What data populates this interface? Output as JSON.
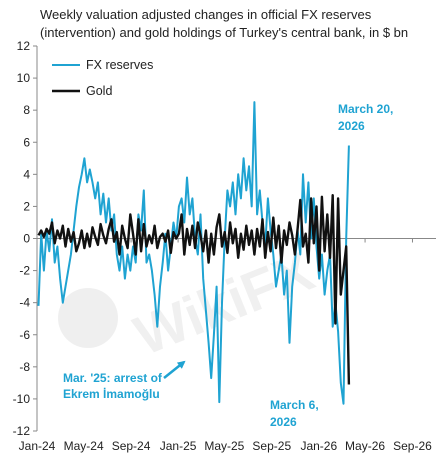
{
  "chart_data": {
    "type": "line",
    "title": "Weekly valuation adjusted changes in official FX reserves (intervention) and gold holdings of Turkey's central bank, in $ bn",
    "title_lines": [
      "Weekly valuation adjusted changes in official FX reserves",
      "(intervention) and gold holdings of Turkey's central bank, in $ bn"
    ],
    "xlabel": "",
    "ylabel": "",
    "ylim": [
      -12,
      12
    ],
    "y_ticks": [
      -12,
      -10,
      -8,
      -6,
      -4,
      -2,
      0,
      2,
      4,
      6,
      8,
      10,
      12
    ],
    "xlim": [
      "2024-01-01",
      "2026-11-01"
    ],
    "x_tick_labels": [
      {
        "date": "2024-01-01",
        "label": "Jan-24"
      },
      {
        "date": "2024-05-01",
        "label": "May-24"
      },
      {
        "date": "2024-09-01",
        "label": "Sep-24"
      },
      {
        "date": "2025-01-01",
        "label": "Jan-25"
      },
      {
        "date": "2025-05-01",
        "label": "May-25"
      },
      {
        "date": "2025-09-01",
        "label": "Sep-25"
      },
      {
        "date": "2026-01-01",
        "label": "Jan-26"
      },
      {
        "date": "2026-05-01",
        "label": "May-26"
      },
      {
        "date": "2026-09-01",
        "label": "Sep-26"
      }
    ],
    "grid": false,
    "legend_position": "top-left",
    "series": [
      {
        "name": "FX reserves",
        "color": "#1fa3d2",
        "points": [
          [
            "2024-01-05",
            -4.2
          ],
          [
            "2024-01-12",
            0.3
          ],
          [
            "2024-01-19",
            -2.0
          ],
          [
            "2024-01-26",
            0.5
          ],
          [
            "2024-02-02",
            -0.8
          ],
          [
            "2024-02-09",
            1.2
          ],
          [
            "2024-02-16",
            -1.5
          ],
          [
            "2024-02-23",
            -0.5
          ],
          [
            "2024-03-01",
            -2.5
          ],
          [
            "2024-03-08",
            -4.0
          ],
          [
            "2024-03-15",
            -3.0
          ],
          [
            "2024-03-22",
            -2.0
          ],
          [
            "2024-03-29",
            -1.0
          ],
          [
            "2024-04-05",
            0.5
          ],
          [
            "2024-04-12",
            2.0
          ],
          [
            "2024-04-19",
            3.2
          ],
          [
            "2024-04-26",
            4.0
          ],
          [
            "2024-05-03",
            5.0
          ],
          [
            "2024-05-10",
            3.5
          ],
          [
            "2024-05-17",
            4.3
          ],
          [
            "2024-05-24",
            3.5
          ],
          [
            "2024-05-31",
            2.5
          ],
          [
            "2024-06-07",
            3.5
          ],
          [
            "2024-06-14",
            1.5
          ],
          [
            "2024-06-21",
            2.8
          ],
          [
            "2024-06-28",
            1.0
          ],
          [
            "2024-07-05",
            2.5
          ],
          [
            "2024-07-12",
            0.5
          ],
          [
            "2024-07-19",
            1.5
          ],
          [
            "2024-07-26",
            -1.0
          ],
          [
            "2024-08-02",
            -2.0
          ],
          [
            "2024-08-09",
            -0.5
          ],
          [
            "2024-08-16",
            -2.5
          ],
          [
            "2024-08-23",
            -1.0
          ],
          [
            "2024-08-30",
            -2.0
          ],
          [
            "2024-09-06",
            -0.5
          ],
          [
            "2024-09-13",
            -1.5
          ],
          [
            "2024-09-20",
            1.5
          ],
          [
            "2024-09-27",
            0.5
          ],
          [
            "2024-10-04",
            3.0
          ],
          [
            "2024-10-11",
            -1.5
          ],
          [
            "2024-10-18",
            -1.0
          ],
          [
            "2024-10-25",
            -2.0
          ],
          [
            "2024-11-01",
            -3.5
          ],
          [
            "2024-11-08",
            -5.5
          ],
          [
            "2024-11-15",
            -3.0
          ],
          [
            "2024-11-22",
            -1.5
          ],
          [
            "2024-11-29",
            0.3
          ],
          [
            "2024-12-06",
            -2.0
          ],
          [
            "2024-12-13",
            -0.5
          ],
          [
            "2024-12-20",
            1.0
          ],
          [
            "2024-12-27",
            0.0
          ],
          [
            "2025-01-03",
            2.0
          ],
          [
            "2025-01-10",
            2.5
          ],
          [
            "2025-01-17",
            1.0
          ],
          [
            "2025-01-24",
            3.8
          ],
          [
            "2025-01-31",
            1.5
          ],
          [
            "2025-02-07",
            2.5
          ],
          [
            "2025-02-14",
            0.0
          ],
          [
            "2025-02-21",
            -1.0
          ],
          [
            "2025-02-28",
            1.5
          ],
          [
            "2025-03-07",
            -2.5
          ],
          [
            "2025-03-14",
            -4.5
          ],
          [
            "2025-03-21",
            -6.5
          ],
          [
            "2025-03-28",
            -8.7
          ],
          [
            "2025-04-04",
            -6.0
          ],
          [
            "2025-04-11",
            -3.0
          ],
          [
            "2025-04-18",
            -10.2
          ],
          [
            "2025-04-25",
            -4.0
          ],
          [
            "2025-05-02",
            0.0
          ],
          [
            "2025-05-09",
            3.0
          ],
          [
            "2025-05-16",
            2.0
          ],
          [
            "2025-05-23",
            3.5
          ],
          [
            "2025-05-30",
            1.5
          ],
          [
            "2025-06-06",
            4.0
          ],
          [
            "2025-06-13",
            2.5
          ],
          [
            "2025-06-20",
            5.0
          ],
          [
            "2025-06-27",
            3.0
          ],
          [
            "2025-07-04",
            4.5
          ],
          [
            "2025-07-11",
            2.0
          ],
          [
            "2025-07-18",
            8.5
          ],
          [
            "2025-07-25",
            1.5
          ],
          [
            "2025-08-01",
            3.0
          ],
          [
            "2025-08-08",
            1.0
          ],
          [
            "2025-08-15",
            -0.5
          ],
          [
            "2025-08-22",
            2.5
          ],
          [
            "2025-08-29",
            0.5
          ],
          [
            "2025-09-05",
            -1.0
          ],
          [
            "2025-09-12",
            -3.0
          ],
          [
            "2025-09-19",
            -2.0
          ],
          [
            "2025-09-26",
            -1.0
          ],
          [
            "2025-10-03",
            -3.5
          ],
          [
            "2025-10-10",
            -2.0
          ],
          [
            "2025-10-17",
            -6.5
          ],
          [
            "2025-10-24",
            -3.0
          ],
          [
            "2025-10-31",
            -1.5
          ],
          [
            "2025-11-07",
            0.5
          ],
          [
            "2025-11-14",
            -1.0
          ],
          [
            "2025-11-21",
            4.0
          ],
          [
            "2025-11-28",
            1.0
          ],
          [
            "2025-12-05",
            3.5
          ],
          [
            "2025-12-12",
            0.0
          ],
          [
            "2025-12-19",
            2.5
          ],
          [
            "2025-12-26",
            -0.5
          ],
          [
            "2026-01-02",
            -2.5
          ],
          [
            "2026-01-09",
            -1.0
          ],
          [
            "2026-01-16",
            -3.5
          ],
          [
            "2026-01-23",
            -2.0
          ],
          [
            "2026-01-30",
            -1.0
          ],
          [
            "2026-02-06",
            -5.5
          ],
          [
            "2026-02-13",
            -4.0
          ],
          [
            "2026-02-20",
            -5.8
          ],
          [
            "2026-02-27",
            -9.0
          ],
          [
            "2026-03-06",
            -10.3
          ],
          [
            "2026-03-13",
            0.0
          ],
          [
            "2026-03-20",
            5.8
          ]
        ]
      },
      {
        "name": "Gold",
        "color": "#111111",
        "points": [
          [
            "2024-01-05",
            0.2
          ],
          [
            "2024-01-12",
            0.5
          ],
          [
            "2024-01-19",
            0.1
          ],
          [
            "2024-01-26",
            0.6
          ],
          [
            "2024-02-02",
            0.3
          ],
          [
            "2024-02-09",
            1.0
          ],
          [
            "2024-02-16",
            -0.3
          ],
          [
            "2024-02-23",
            0.5
          ],
          [
            "2024-03-01",
            0.0
          ],
          [
            "2024-03-08",
            0.8
          ],
          [
            "2024-03-15",
            -0.5
          ],
          [
            "2024-03-22",
            0.6
          ],
          [
            "2024-03-29",
            -0.2
          ],
          [
            "2024-04-05",
            0.4
          ],
          [
            "2024-04-12",
            -0.8
          ],
          [
            "2024-04-19",
            -0.3
          ],
          [
            "2024-04-26",
            0.5
          ],
          [
            "2024-05-03",
            -0.6
          ],
          [
            "2024-05-10",
            0.3
          ],
          [
            "2024-05-17",
            -0.5
          ],
          [
            "2024-05-24",
            0.7
          ],
          [
            "2024-05-31",
            0.1
          ],
          [
            "2024-06-07",
            -0.4
          ],
          [
            "2024-06-14",
            0.9
          ],
          [
            "2024-06-21",
            0.2
          ],
          [
            "2024-06-28",
            -0.3
          ],
          [
            "2024-07-05",
            0.6
          ],
          [
            "2024-07-12",
            1.2
          ],
          [
            "2024-07-19",
            -0.2
          ],
          [
            "2024-07-26",
            0.4
          ],
          [
            "2024-08-02",
            -1.0
          ],
          [
            "2024-08-09",
            0.8
          ],
          [
            "2024-08-16",
            0.0
          ],
          [
            "2024-08-23",
            -0.6
          ],
          [
            "2024-08-30",
            1.5
          ],
          [
            "2024-09-06",
            0.3
          ],
          [
            "2024-09-13",
            -1.0
          ],
          [
            "2024-09-20",
            1.2
          ],
          [
            "2024-09-27",
            -0.8
          ],
          [
            "2024-10-04",
            0.9
          ],
          [
            "2024-10-11",
            -0.5
          ],
          [
            "2024-10-18",
            0.2
          ],
          [
            "2024-10-25",
            -0.3
          ],
          [
            "2024-11-01",
            0.8
          ],
          [
            "2024-11-08",
            -0.6
          ],
          [
            "2024-11-15",
            0.1
          ],
          [
            "2024-11-22",
            0.3
          ],
          [
            "2024-11-29",
            -0.2
          ],
          [
            "2024-12-06",
            0.5
          ],
          [
            "2024-12-13",
            -0.9
          ],
          [
            "2024-12-20",
            0.4
          ],
          [
            "2024-12-27",
            0.0
          ],
          [
            "2025-01-03",
            0.3
          ],
          [
            "2025-01-10",
            1.5
          ],
          [
            "2025-01-17",
            -1.0
          ],
          [
            "2025-01-24",
            0.6
          ],
          [
            "2025-01-31",
            -0.4
          ],
          [
            "2025-02-07",
            0.8
          ],
          [
            "2025-02-14",
            -0.6
          ],
          [
            "2025-02-21",
            1.0
          ],
          [
            "2025-02-28",
            0.2
          ],
          [
            "2025-03-07",
            -0.8
          ],
          [
            "2025-03-14",
            0.5
          ],
          [
            "2025-03-21",
            -1.5
          ],
          [
            "2025-03-28",
            0.3
          ],
          [
            "2025-04-04",
            -1.0
          ],
          [
            "2025-04-11",
            0.7
          ],
          [
            "2025-04-18",
            1.5
          ],
          [
            "2025-04-25",
            -0.5
          ],
          [
            "2025-05-02",
            0.4
          ],
          [
            "2025-05-09",
            -0.9
          ],
          [
            "2025-05-16",
            1.0
          ],
          [
            "2025-05-23",
            -0.3
          ],
          [
            "2025-05-30",
            0.6
          ],
          [
            "2025-06-06",
            -1.2
          ],
          [
            "2025-06-13",
            0.3
          ],
          [
            "2025-06-20",
            -0.7
          ],
          [
            "2025-06-27",
            0.8
          ],
          [
            "2025-07-04",
            -0.4
          ],
          [
            "2025-07-11",
            0.5
          ],
          [
            "2025-07-18",
            -1.0
          ],
          [
            "2025-07-25",
            0.6
          ],
          [
            "2025-08-01",
            -0.5
          ],
          [
            "2025-08-08",
            1.2
          ],
          [
            "2025-08-15",
            -1.2
          ],
          [
            "2025-08-22",
            0.4
          ],
          [
            "2025-08-29",
            -0.8
          ],
          [
            "2025-09-05",
            1.3
          ],
          [
            "2025-09-12",
            -0.6
          ],
          [
            "2025-09-19",
            0.8
          ],
          [
            "2025-09-26",
            -1.5
          ],
          [
            "2025-10-03",
            0.5
          ],
          [
            "2025-10-10",
            -0.4
          ],
          [
            "2025-10-17",
            1.0
          ],
          [
            "2025-10-24",
            0.2
          ],
          [
            "2025-10-31",
            -1.0
          ],
          [
            "2025-11-07",
            0.6
          ],
          [
            "2025-11-14",
            2.4
          ],
          [
            "2025-11-21",
            -0.5
          ],
          [
            "2025-11-28",
            0.3
          ],
          [
            "2025-12-05",
            -1.5
          ],
          [
            "2025-12-12",
            2.5
          ],
          [
            "2025-12-19",
            -0.3
          ],
          [
            "2025-12-26",
            2.0
          ],
          [
            "2026-01-02",
            -2.0
          ],
          [
            "2026-01-09",
            2.6
          ],
          [
            "2026-01-16",
            -0.8
          ],
          [
            "2026-01-23",
            1.5
          ],
          [
            "2026-01-30",
            -1.2
          ],
          [
            "2026-02-06",
            2.7
          ],
          [
            "2026-02-13",
            -5.3
          ],
          [
            "2026-02-20",
            2.5
          ],
          [
            "2026-02-27",
            -3.5
          ],
          [
            "2026-03-06",
            -2.0
          ],
          [
            "2026-03-13",
            -0.5
          ],
          [
            "2026-03-20",
            -9.1
          ]
        ]
      }
    ],
    "annotations": [
      {
        "text_lines": [
          "March 20,",
          "2026"
        ],
        "date": "2026-03-20",
        "value": 5.8
      },
      {
        "text_lines": [
          "Mar. '25: arrest of",
          "Ekrem İmamoğlu"
        ],
        "date": "2025-03-28",
        "value": -8.7,
        "arrow": true
      },
      {
        "text_lines": [
          "March 6,",
          "2026"
        ],
        "date": "2026-03-06",
        "value": -10.3
      }
    ],
    "watermark": "WikiFX"
  }
}
